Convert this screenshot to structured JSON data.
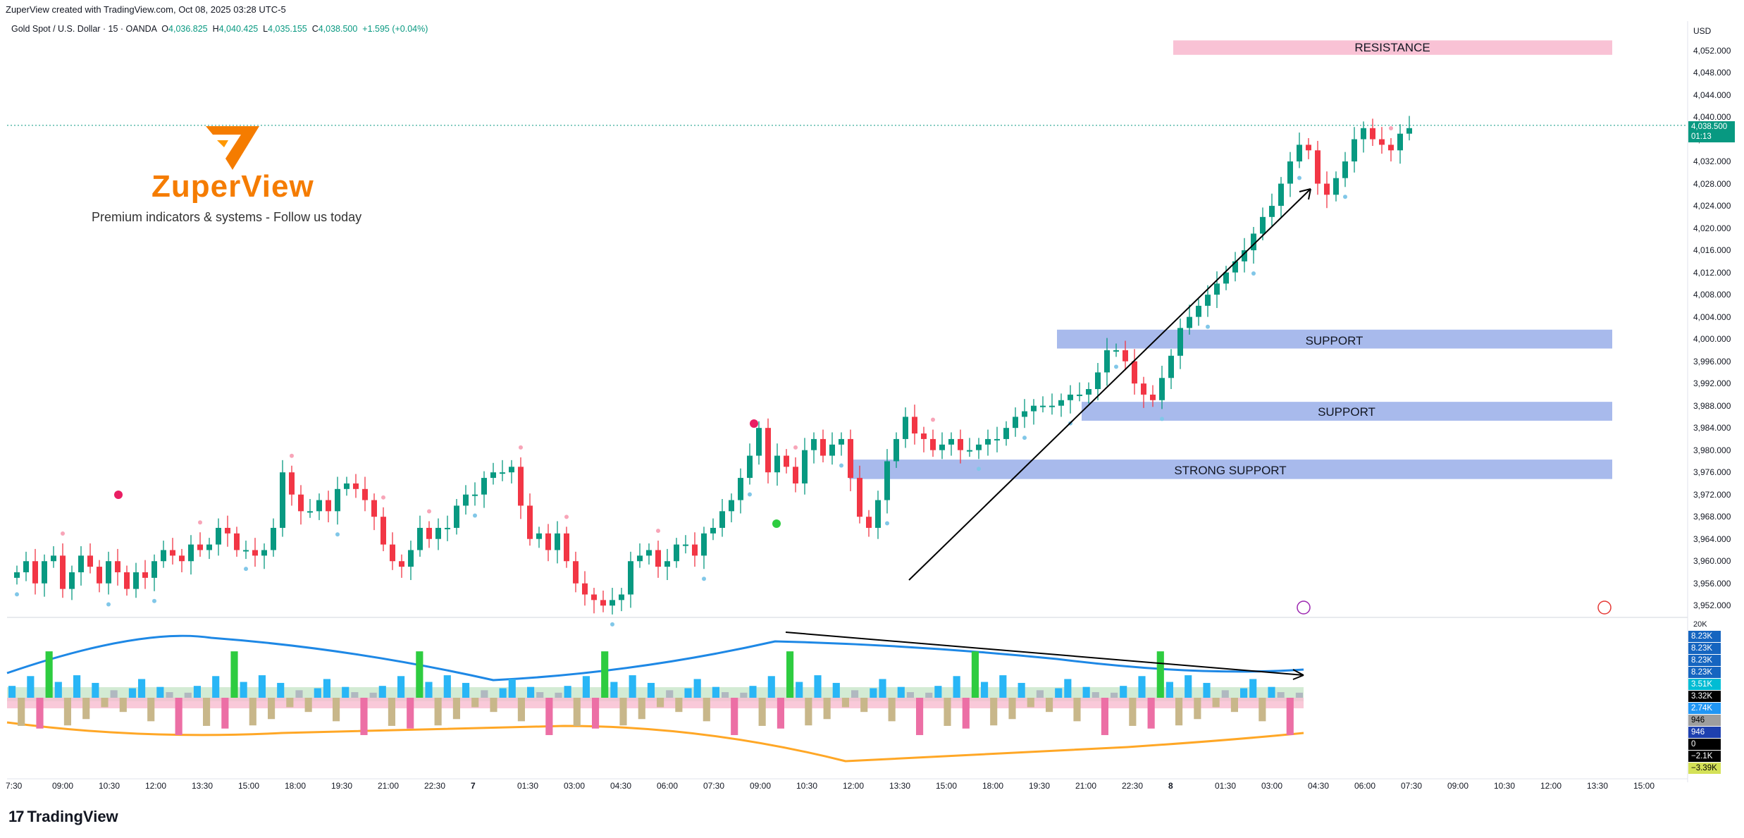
{
  "header": {
    "created_by": "ZuperView created with TradingView.com, Oct 08, 2025 03:28 UTC-5"
  },
  "legend": {
    "symbol": "Gold Spot / U.S. Dollar · 15 · OANDA",
    "open_label": "O",
    "open": "4,036.825",
    "high_label": "H",
    "high": "4,040.425",
    "low_label": "L",
    "low": "4,035.155",
    "close_label": "C",
    "close": "4,038.500",
    "change": "+1.595 (+0.04%)"
  },
  "branding": {
    "logo_text": "ZuperView",
    "tagline": "Premium indicators & systems - Follow us today",
    "footer_logo": "TradingView"
  },
  "price_axis": {
    "currency": "USD",
    "ticks": [
      "4,052.000",
      "4,048.000",
      "4,044.000",
      "4,040.000",
      "4,036.000",
      "4,032.000",
      "4,028.000",
      "4,024.000",
      "4,020.000",
      "4,016.000",
      "4,012.000",
      "4,008.000",
      "4,004.000",
      "4,000.000",
      "3,996.000",
      "3,992.000",
      "3,988.000",
      "3,984.000",
      "3,980.000",
      "3,976.000",
      "3,972.000",
      "3,968.000",
      "3,964.000",
      "3,960.000",
      "3,956.000",
      "3,952.000"
    ],
    "last_price": "4,038.500",
    "countdown": "01:13"
  },
  "time_axis": {
    "ticks": [
      "7:30",
      "09:00",
      "10:30",
      "12:00",
      "13:30",
      "15:00",
      "18:00",
      "19:30",
      "21:00",
      "22:30",
      "7",
      "01:30",
      "03:00",
      "04:30",
      "06:00",
      "07:30",
      "09:00",
      "10:30",
      "12:00",
      "13:30",
      "15:00",
      "18:00",
      "19:30",
      "21:00",
      "22:30",
      "8",
      "01:30",
      "03:00",
      "04:30",
      "06:00",
      "07:30",
      "09:00",
      "10:30",
      "12:00",
      "13:30",
      "15:00"
    ]
  },
  "zones": {
    "resistance": "RESISTANCE",
    "support_1": "SUPPORT",
    "support_2": "SUPPORT",
    "strong_support": "STRONG SUPPORT"
  },
  "volume_axis": {
    "top_tick": "20K",
    "tags": [
      {
        "label": "8.23K",
        "color": "#1565c0"
      },
      {
        "label": "8.23K",
        "color": "#1565c0"
      },
      {
        "label": "8.23K",
        "color": "#1565c0"
      },
      {
        "label": "8.23K",
        "color": "#1565c0"
      },
      {
        "label": "3.51K",
        "color": "#00bcd4"
      },
      {
        "label": "3.32K",
        "color": "#000000"
      },
      {
        "label": "2.74K",
        "color": "#2196f3"
      },
      {
        "label": "946",
        "color": "#9e9e9e"
      },
      {
        "label": "946",
        "color": "#1e40af"
      },
      {
        "label": "0",
        "color": "#000000"
      },
      {
        "label": "−2.1K",
        "color": "#000000"
      },
      {
        "label": "−3.39K",
        "color": "#d4e157"
      }
    ]
  },
  "colors": {
    "up": "#089981",
    "down": "#f23645",
    "resistance": "#f8bbd0",
    "support": "#9fb2ea",
    "brand": "#f57c00"
  },
  "chart_data": [
    {
      "type": "candlestick",
      "title": "Gold Spot / U.S. Dollar · 15 · OANDA",
      "ylim": [
        3950,
        4056
      ],
      "zones": [
        {
          "label": "RESISTANCE",
          "from": 4051.2,
          "to": 4053.8
        },
        {
          "label": "SUPPORT",
          "from": 3998.3,
          "to": 4001.7
        },
        {
          "label": "SUPPORT",
          "from": 3985.3,
          "to": 3988.7
        },
        {
          "label": "STRONG SUPPORT",
          "from": 3974.8,
          "to": 3978.3
        }
      ],
      "trend_line": {
        "from": [
          225,
          3956.0
        ],
        "to": [
          580,
          4027.0
        ]
      },
      "last": 4038.5,
      "closes": [
        3958,
        3960,
        3956,
        3960,
        3961,
        3955,
        3958,
        3961,
        3959,
        3956,
        3960,
        3958,
        3955,
        3958,
        3957,
        3960,
        3962,
        3961,
        3960,
        3963,
        3962,
        3963,
        3966,
        3965,
        3962,
        3962,
        3961,
        3962,
        3966,
        3976,
        3972,
        3969,
        3969,
        3971,
        3969,
        3973,
        3974,
        3973,
        3971,
        3968,
        3963,
        3960,
        3959,
        3962,
        3966,
        3964,
        3966,
        3966,
        3970,
        3972,
        3972,
        3975,
        3976,
        3976,
        3977,
        3970,
        3964,
        3965,
        3962,
        3965,
        3960,
        3956,
        3954,
        3953,
        3952,
        3953,
        3954,
        3960,
        3961,
        3962,
        3959,
        3960,
        3963,
        3963,
        3961,
        3965,
        3966,
        3969,
        3971,
        3975,
        3979,
        3984,
        3976,
        3979,
        3977,
        3974,
        3980,
        3982,
        3979,
        3981,
        3982,
        3975,
        3968,
        3966,
        3971,
        3978,
        3982,
        3986,
        3983,
        3982,
        3980,
        3981,
        3982,
        3980,
        3980,
        3981,
        3982,
        3982,
        3984,
        3986,
        3987,
        3988,
        3988,
        3988,
        3989,
        3990,
        3990,
        3991,
        3994,
        3998,
        3998,
        3996,
        3992,
        3990,
        3989,
        3993,
        3997,
        4002,
        4004,
        4006,
        4008,
        4010,
        4012,
        4014,
        4016,
        4019,
        4022,
        4024,
        4028,
        4032,
        4035,
        4034,
        4028,
        4026,
        4029,
        4032,
        4036,
        4038,
        4036,
        4035,
        4034,
        4037,
        4038
      ]
    },
    {
      "type": "bar",
      "title": "",
      "ylim": [
        -3390,
        20000
      ],
      "values": [
        3500,
        -1500,
        4800,
        -2400,
        8230,
        3300,
        -2000,
        3800,
        -1200,
        3510,
        -800,
        1400,
        -900,
        2600,
        3320,
        -1400,
        2740,
        946,
        -2100,
        1200
      ]
    }
  ]
}
